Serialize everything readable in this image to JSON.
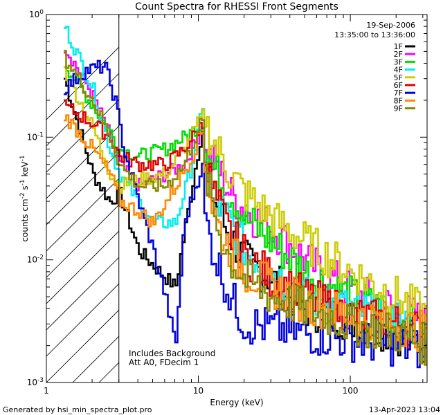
{
  "chart_data": {
    "type": "line",
    "title": "Count Spectra for RHESSI Front Segments",
    "xlabel": "Energy (keV)",
    "ylabel": "counts cm",
    "ylabel_sup1": "-2",
    "ylabel_mid": " s",
    "ylabel_sup2": "-1",
    "ylabel_end": " keV",
    "ylabel_sup3": "-1",
    "xscale": "log",
    "yscale": "log",
    "xlim": [
      1,
      320
    ],
    "ylim": [
      0.001,
      1
    ],
    "x_ticks": [
      {
        "value": 1,
        "label": "1"
      },
      {
        "value": 10,
        "label": "10"
      },
      {
        "value": 100,
        "label": "100"
      }
    ],
    "y_ticks": [
      {
        "value": 1,
        "base": "10",
        "exp": "0"
      },
      {
        "value": 0.1,
        "base": "10",
        "exp": "-1"
      },
      {
        "value": 0.01,
        "base": "10",
        "exp": "-2"
      },
      {
        "value": 0.001,
        "base": "10",
        "exp": "-3"
      }
    ],
    "date": "19-Sep-2006",
    "time_range": "13:35:00 to 13:36:00",
    "hatched_region_keV": [
      1,
      3
    ],
    "annotations": [
      "Includes Background",
      "Att A0, FDecim 1"
    ],
    "legend_position": "top-right",
    "series": [
      {
        "name": "1F",
        "color": "#000000",
        "points": [
          [
            1.3,
            0.3
          ],
          [
            2,
            0.05
          ],
          [
            2.6,
            0.03
          ],
          [
            3,
            0.035
          ],
          [
            4,
            0.012
          ],
          [
            5,
            0.009
          ],
          [
            7,
            0.006
          ],
          [
            9,
            0.04
          ],
          [
            10.5,
            0.12
          ],
          [
            11,
            0.05
          ],
          [
            13,
            0.028
          ],
          [
            15,
            0.018
          ],
          [
            20,
            0.01
          ],
          [
            30,
            0.007
          ],
          [
            50,
            0.004
          ],
          [
            100,
            0.0032
          ],
          [
            200,
            0.0025
          ],
          [
            320,
            0.002
          ]
        ]
      },
      {
        "name": "2F",
        "color": "#ff00ff",
        "points": [
          [
            1.3,
            0.55
          ],
          [
            2,
            0.22
          ],
          [
            2.6,
            0.1
          ],
          [
            3,
            0.06
          ],
          [
            4,
            0.04
          ],
          [
            6,
            0.05
          ],
          [
            8,
            0.06
          ],
          [
            10.5,
            0.12
          ],
          [
            11,
            0.07
          ],
          [
            13,
            0.06
          ],
          [
            16,
            0.035
          ],
          [
            20,
            0.025
          ],
          [
            30,
            0.018
          ],
          [
            50,
            0.01
          ],
          [
            100,
            0.0055
          ],
          [
            200,
            0.004
          ],
          [
            320,
            0.003
          ]
        ]
      },
      {
        "name": "3F",
        "color": "#00dd00",
        "points": [
          [
            1.3,
            0.4
          ],
          [
            2,
            0.18
          ],
          [
            2.6,
            0.11
          ],
          [
            3,
            0.08
          ],
          [
            4,
            0.07
          ],
          [
            6,
            0.08
          ],
          [
            8,
            0.1
          ],
          [
            10.5,
            0.13
          ],
          [
            11,
            0.08
          ],
          [
            13,
            0.05
          ],
          [
            16,
            0.035
          ],
          [
            20,
            0.022
          ],
          [
            30,
            0.014
          ],
          [
            50,
            0.008
          ],
          [
            100,
            0.005
          ],
          [
            200,
            0.0035
          ],
          [
            320,
            0.0022
          ]
        ]
      },
      {
        "name": "4F",
        "color": "#00eeee",
        "points": [
          [
            1.3,
            0.8
          ],
          [
            2,
            0.25
          ],
          [
            2.6,
            0.08
          ],
          [
            3,
            0.05
          ],
          [
            4,
            0.03
          ],
          [
            5,
            0.02
          ],
          [
            7,
            0.02
          ],
          [
            9,
            0.06
          ],
          [
            10.5,
            0.17
          ],
          [
            11,
            0.06
          ],
          [
            13,
            0.03
          ],
          [
            16,
            0.02
          ],
          [
            20,
            0.012
          ],
          [
            30,
            0.008
          ],
          [
            50,
            0.005
          ],
          [
            100,
            0.004
          ],
          [
            200,
            0.0032
          ],
          [
            320,
            0.0025
          ]
        ]
      },
      {
        "name": "5F",
        "color": "#cccc00",
        "points": [
          [
            1.3,
            0.35
          ],
          [
            2,
            0.12
          ],
          [
            2.6,
            0.05
          ],
          [
            3,
            0.04
          ],
          [
            4,
            0.045
          ],
          [
            6,
            0.05
          ],
          [
            8,
            0.08
          ],
          [
            10.5,
            0.15
          ],
          [
            12,
            0.1
          ],
          [
            14,
            0.07
          ],
          [
            16,
            0.05
          ],
          [
            20,
            0.035
          ],
          [
            30,
            0.022
          ],
          [
            50,
            0.014
          ],
          [
            100,
            0.008
          ],
          [
            200,
            0.005
          ],
          [
            320,
            0.0035
          ]
        ]
      },
      {
        "name": "6F",
        "color": "#dd0000",
        "points": [
          [
            1.3,
            0.18
          ],
          [
            2,
            0.13
          ],
          [
            2.6,
            0.1
          ],
          [
            3,
            0.07
          ],
          [
            4,
            0.06
          ],
          [
            6,
            0.06
          ],
          [
            8,
            0.08
          ],
          [
            10.5,
            0.13
          ],
          [
            11,
            0.06
          ],
          [
            13,
            0.03
          ],
          [
            16,
            0.016
          ],
          [
            20,
            0.011
          ],
          [
            30,
            0.007
          ],
          [
            50,
            0.005
          ],
          [
            100,
            0.0035
          ],
          [
            200,
            0.003
          ],
          [
            320,
            0.0025
          ]
        ]
      },
      {
        "name": "7F",
        "color": "#0000dd",
        "points": [
          [
            1.3,
            0.25
          ],
          [
            1.8,
            0.35
          ],
          [
            2.4,
            0.38
          ],
          [
            2.8,
            0.2
          ],
          [
            3.2,
            0.08
          ],
          [
            4,
            0.03
          ],
          [
            5,
            0.012
          ],
          [
            6,
            0.005
          ],
          [
            7,
            0.002
          ],
          [
            8,
            0.02
          ],
          [
            10.5,
            0.06
          ],
          [
            11,
            0.02
          ],
          [
            13,
            0.01
          ],
          [
            16,
            0.005
          ],
          [
            20,
            0.003
          ],
          [
            30,
            0.0028
          ],
          [
            50,
            0.0025
          ],
          [
            100,
            0.0022
          ],
          [
            200,
            0.002
          ],
          [
            320,
            0.0018
          ]
        ]
      },
      {
        "name": "8F",
        "color": "#ff8800",
        "points": [
          [
            1.3,
            0.15
          ],
          [
            2,
            0.08
          ],
          [
            2.6,
            0.05
          ],
          [
            3,
            0.03
          ],
          [
            4,
            0.025
          ],
          [
            5,
            0.02
          ],
          [
            7,
            0.04
          ],
          [
            9,
            0.07
          ],
          [
            10.5,
            0.12
          ],
          [
            11,
            0.05
          ],
          [
            13,
            0.02
          ],
          [
            16,
            0.012
          ],
          [
            20,
            0.008
          ],
          [
            30,
            0.006
          ],
          [
            50,
            0.0045
          ],
          [
            100,
            0.0035
          ],
          [
            200,
            0.003
          ],
          [
            320,
            0.0025
          ]
        ]
      },
      {
        "name": "9F",
        "color": "#888800",
        "points": [
          [
            1.3,
            0.45
          ],
          [
            2,
            0.2
          ],
          [
            2.6,
            0.1
          ],
          [
            3,
            0.06
          ],
          [
            4,
            0.04
          ],
          [
            6,
            0.04
          ],
          [
            8,
            0.06
          ],
          [
            10.5,
            0.14
          ],
          [
            11,
            0.05
          ],
          [
            13,
            0.02
          ],
          [
            16,
            0.01
          ],
          [
            20,
            0.007
          ],
          [
            30,
            0.005
          ],
          [
            50,
            0.004
          ],
          [
            100,
            0.003
          ],
          [
            200,
            0.0025
          ],
          [
            320,
            0.002
          ]
        ]
      }
    ]
  },
  "footer": {
    "left": "Generated by hsi_min_spectra_plot.pro",
    "right": "13-Apr-2023 13:04"
  }
}
